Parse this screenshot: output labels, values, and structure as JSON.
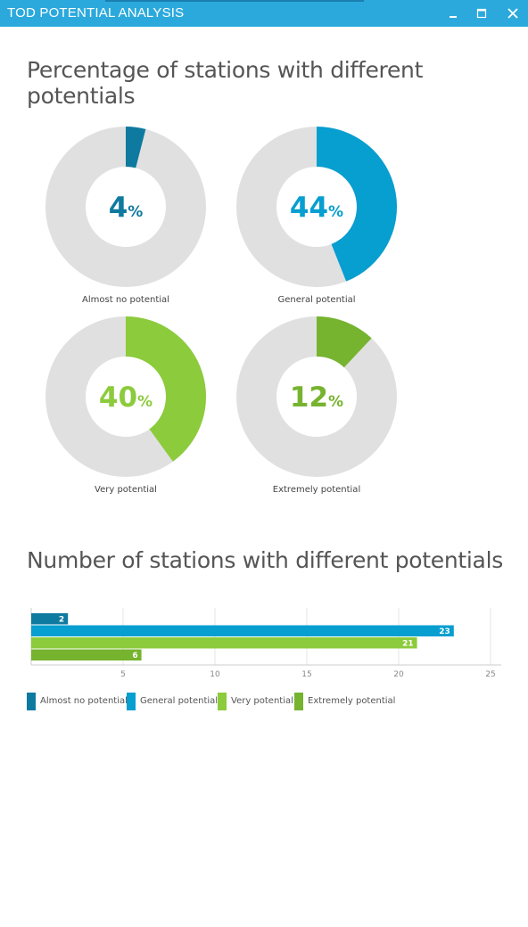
{
  "window": {
    "title": "TOD POTENTIAL ANALYSIS"
  },
  "donut_section": {
    "title": "Percentage of stations with different potentials"
  },
  "bar_section": {
    "title": "Number of stations with different potentials"
  },
  "legend": [
    {
      "label": "Almost no potential",
      "color": "#0f7a9f"
    },
    {
      "label": "General potential",
      "color": "#079ed0"
    },
    {
      "label": "Very potential",
      "color": "#8ccb3c"
    },
    {
      "label": "Extremely potential",
      "color": "#76b32f"
    }
  ],
  "chart_data": [
    {
      "type": "pie",
      "title": "Percentage of stations with different potentials",
      "track_color": "#e0e0e0",
      "unit": "%",
      "series": [
        {
          "name": "Almost no potential",
          "value": 4,
          "color": "#0f7a9f"
        },
        {
          "name": "General potential",
          "value": 44,
          "color": "#079ed0"
        },
        {
          "name": "Very potential",
          "value": 40,
          "color": "#8ccb3c"
        },
        {
          "name": "Extremely potential",
          "value": 12,
          "color": "#76b32f"
        }
      ]
    },
    {
      "type": "bar",
      "orientation": "horizontal",
      "title": "Number of stations with different potentials",
      "categories": [
        "Almost no potential",
        "General potential",
        "Very potential",
        "Extremely potential"
      ],
      "values": [
        2,
        23,
        21,
        6
      ],
      "colors": [
        "#0f7a9f",
        "#079ed0",
        "#8ccb3c",
        "#76b32f"
      ],
      "xlim": [
        0,
        25
      ],
      "xticks": [
        5,
        10,
        15,
        20,
        25
      ],
      "grid": true,
      "legend_position": "bottom"
    }
  ]
}
